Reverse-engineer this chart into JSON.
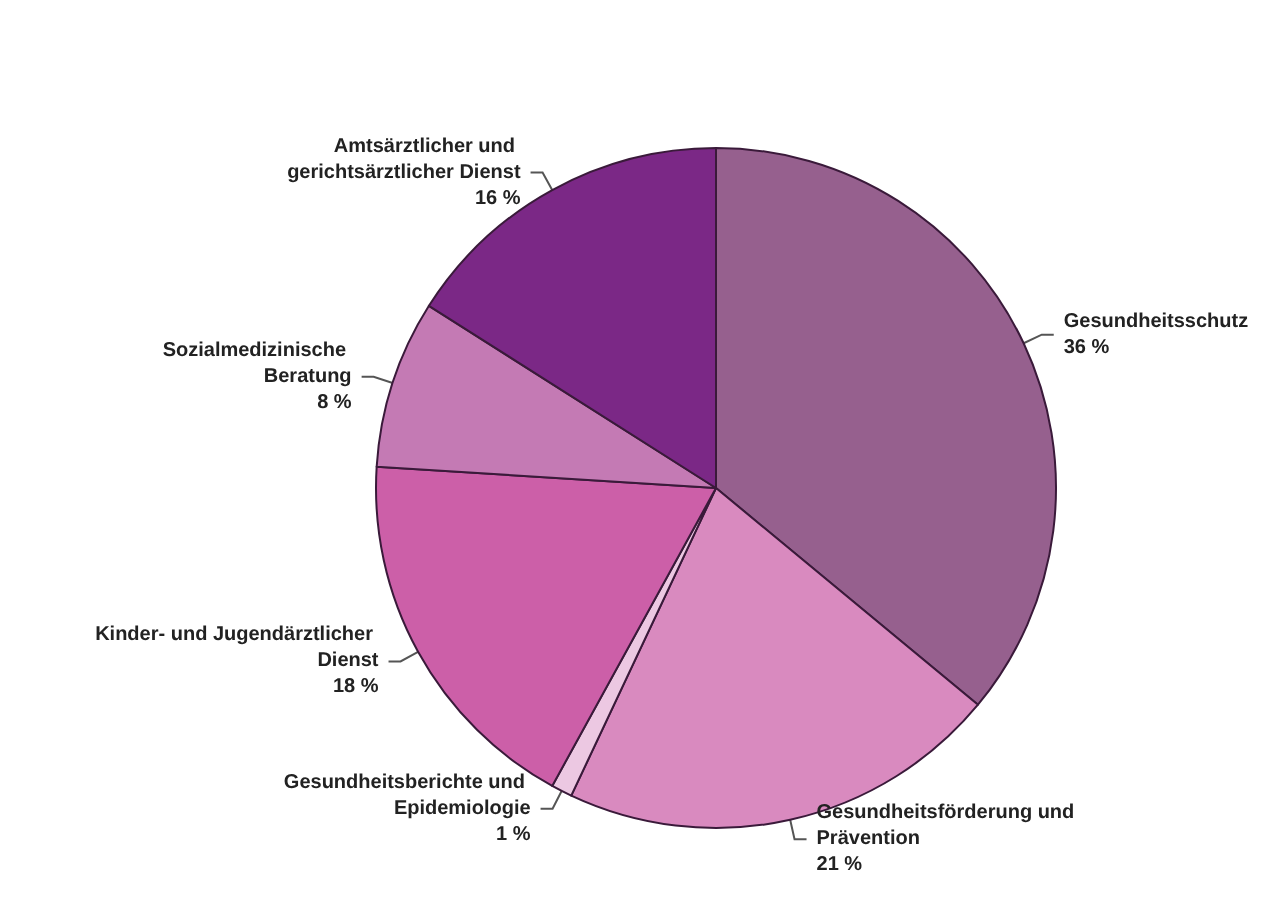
{
  "chart_data": {
    "type": "pie",
    "categories": [
      "Gesundheitsschutz",
      "Gesundheitsförderung und Prävention",
      "Gesundheitsberichte und Epidemiologie",
      "Kinder- und Jugendärztlicher Dienst",
      "Sozialmedizinische Beratung",
      "Amtsärztlicher und gerichtsärztlicher Dienst"
    ],
    "values": [
      36,
      21,
      1,
      18,
      8,
      16
    ],
    "value_labels": [
      "36 %",
      "21 %",
      "1 %",
      "18 %",
      "8 %",
      "16 %"
    ],
    "colors": [
      "#96608e",
      "#d98abf",
      "#ecc8e2",
      "#cc5fa8",
      "#c47ab4",
      "#7b2886"
    ]
  }
}
